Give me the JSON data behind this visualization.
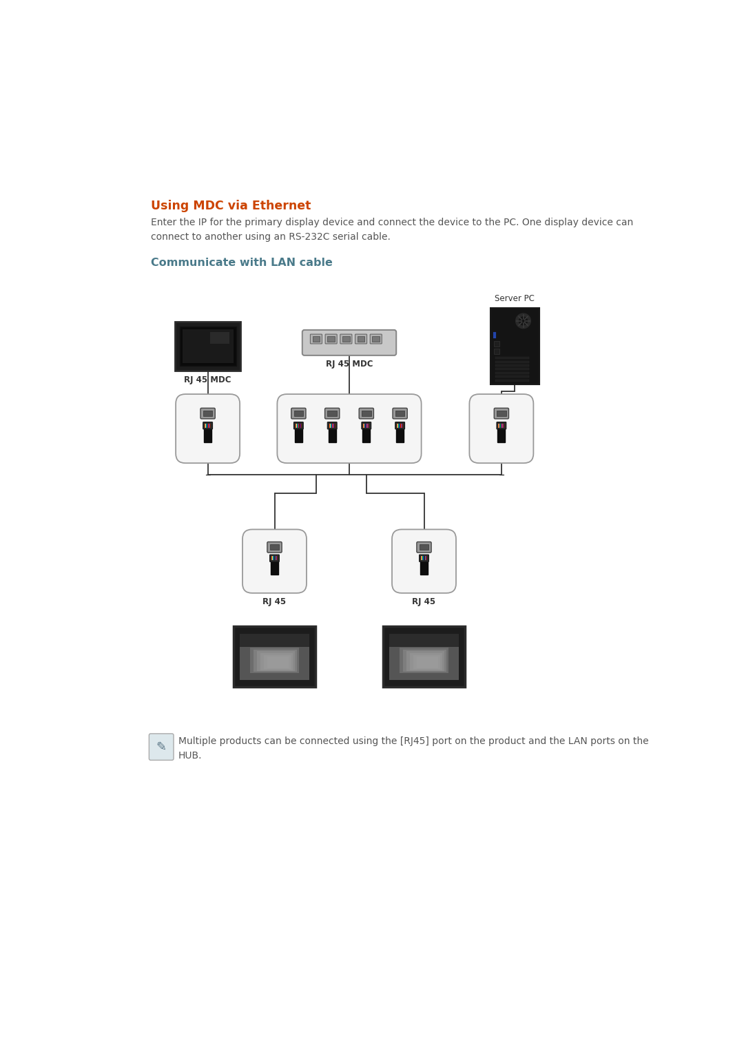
{
  "title": "Using MDC via Ethernet",
  "title_color": "#cc4400",
  "subtitle": "Communicate with LAN cable",
  "subtitle_color": "#4a7a8a",
  "body_text": "Enter the IP for the primary display device and connect the device to the PC. One display device can\nconnect to another using an RS-232C serial cable.",
  "body_color": "#555555",
  "note_text": "Multiple products can be connected using the [RJ45] port on the product and the LAN ports on the\nHUB.",
  "note_color": "#555555",
  "bg_color": "#ffffff",
  "title_fontsize": 12.5,
  "subtitle_fontsize": 11.5,
  "body_fontsize": 10,
  "note_fontsize": 10
}
